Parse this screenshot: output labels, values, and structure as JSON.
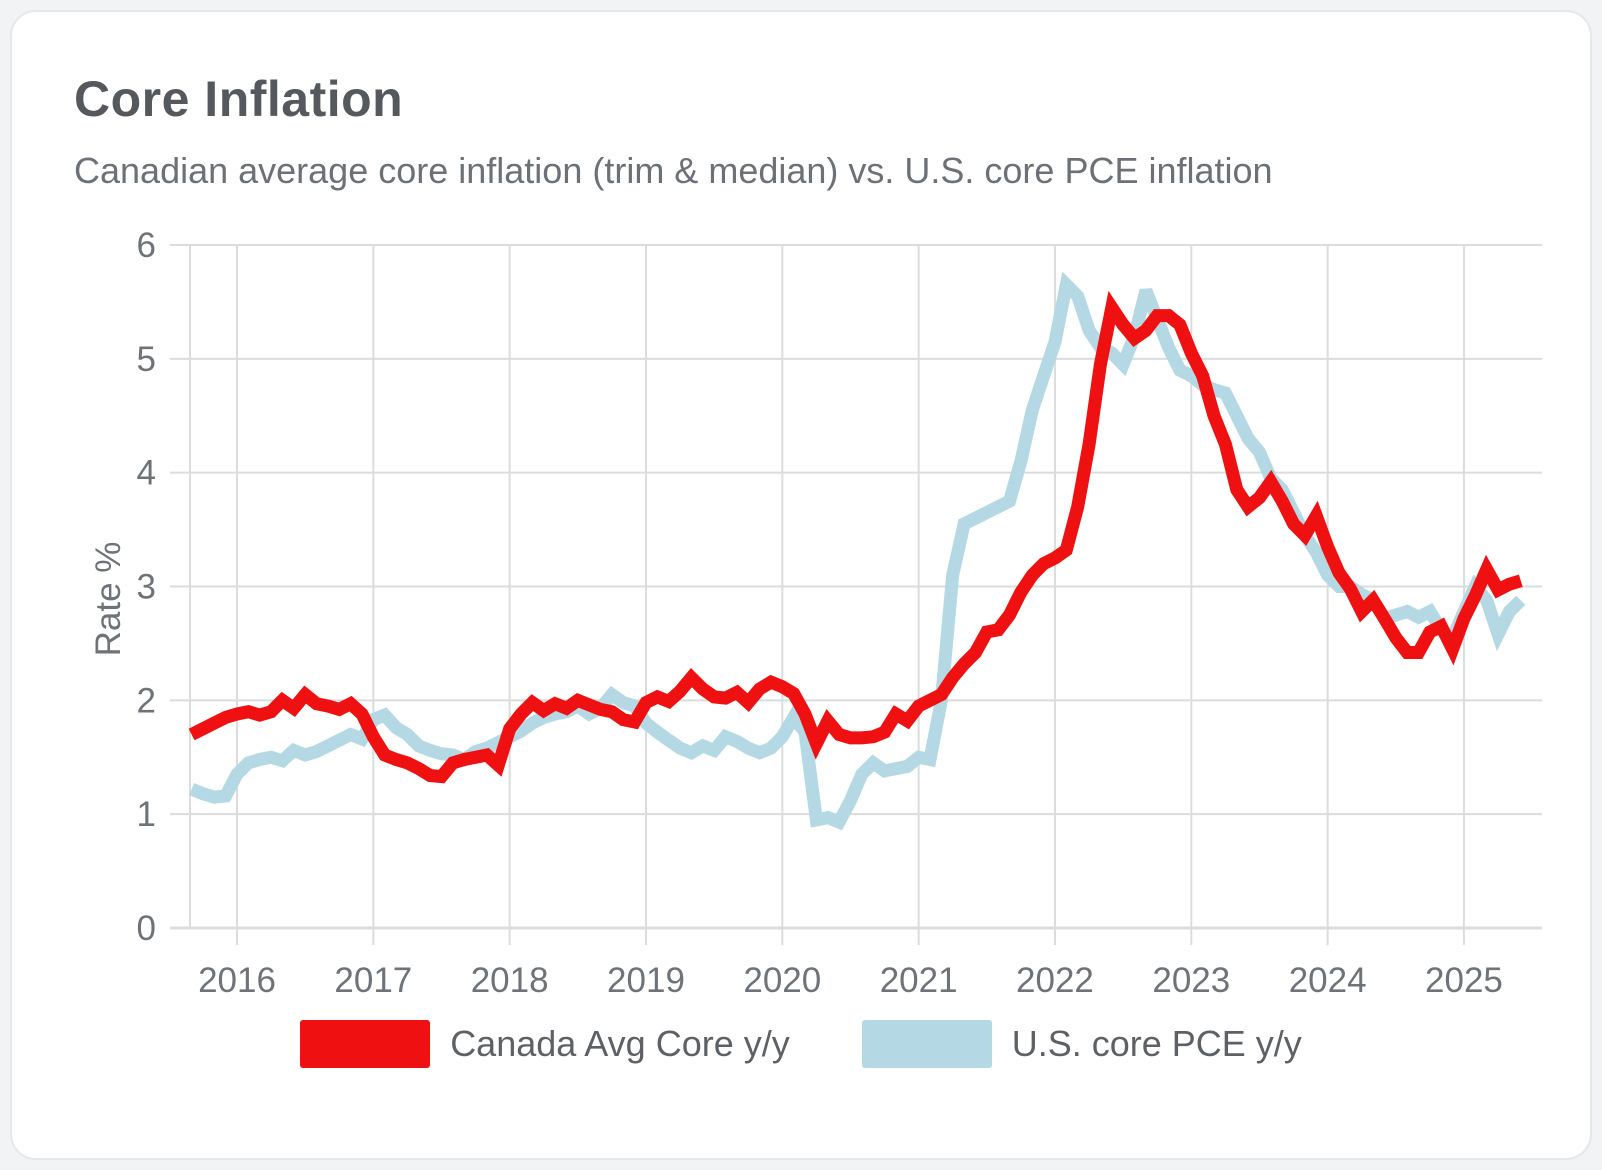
{
  "chart_data": {
    "type": "line",
    "title": "Core Inflation",
    "subtitle": "Canadian average core inflation (trim & median) vs. U.S. core PCE inflation",
    "ylabel": "Rate %",
    "frequency": "monthly",
    "x_start": "2015-09",
    "x_end": "2025-06",
    "ylim": [
      0,
      6
    ],
    "y_ticks": [
      0,
      1,
      2,
      3,
      4,
      5,
      6
    ],
    "x_ticks": [
      2016,
      2017,
      2018,
      2019,
      2020,
      2021,
      2022,
      2023,
      2024,
      2025
    ],
    "grid": true,
    "legend_position": "bottom",
    "grid_color": "#dadcde",
    "axis_text_color": "#6e7379",
    "series": [
      {
        "name": "U.S. core PCE y/y",
        "color": "#b4d9e5",
        "values": [
          1.22,
          1.18,
          1.15,
          1.16,
          1.35,
          1.45,
          1.48,
          1.5,
          1.47,
          1.56,
          1.52,
          1.55,
          1.6,
          1.65,
          1.7,
          1.66,
          1.83,
          1.87,
          1.76,
          1.7,
          1.6,
          1.56,
          1.53,
          1.52,
          1.48,
          1.55,
          1.58,
          1.63,
          1.68,
          1.73,
          1.8,
          1.85,
          1.88,
          1.9,
          1.95,
          1.88,
          1.93,
          2.05,
          1.98,
          1.95,
          1.8,
          1.72,
          1.65,
          1.58,
          1.54,
          1.6,
          1.56,
          1.68,
          1.64,
          1.58,
          1.54,
          1.58,
          1.68,
          1.85,
          1.72,
          0.95,
          0.97,
          0.93,
          1.12,
          1.35,
          1.45,
          1.38,
          1.4,
          1.42,
          1.5,
          1.48,
          2.0,
          3.1,
          3.55,
          3.6,
          3.65,
          3.7,
          3.75,
          4.1,
          4.55,
          4.85,
          5.15,
          5.65,
          5.55,
          5.25,
          5.1,
          5.05,
          4.95,
          5.2,
          5.6,
          5.35,
          5.1,
          4.9,
          4.85,
          4.77,
          4.73,
          4.7,
          4.5,
          4.3,
          4.18,
          3.95,
          3.85,
          3.65,
          3.45,
          3.3,
          3.1,
          3.0,
          3.0,
          2.93,
          2.88,
          2.72,
          2.75,
          2.78,
          2.73,
          2.78,
          2.62,
          2.55,
          2.78,
          3.0,
          2.88,
          2.58,
          2.78,
          2.88
        ]
      },
      {
        "name": "Canada Avg Core y/y",
        "color": "#ef1111",
        "values": [
          1.7,
          1.75,
          1.8,
          1.85,
          1.88,
          1.9,
          1.87,
          1.9,
          2.0,
          1.93,
          2.05,
          1.97,
          1.95,
          1.92,
          1.97,
          1.88,
          1.68,
          1.52,
          1.48,
          1.45,
          1.4,
          1.34,
          1.33,
          1.45,
          1.48,
          1.5,
          1.52,
          1.43,
          1.75,
          1.88,
          1.98,
          1.91,
          1.97,
          1.93,
          2.0,
          1.96,
          1.92,
          1.9,
          1.83,
          1.81,
          1.98,
          2.03,
          1.99,
          2.08,
          2.2,
          2.1,
          2.03,
          2.02,
          2.07,
          1.98,
          2.1,
          2.16,
          2.12,
          2.06,
          1.88,
          1.62,
          1.82,
          1.7,
          1.67,
          1.67,
          1.68,
          1.72,
          1.88,
          1.82,
          1.95,
          2.0,
          2.05,
          2.2,
          2.32,
          2.42,
          2.6,
          2.62,
          2.75,
          2.95,
          3.1,
          3.2,
          3.25,
          3.32,
          3.7,
          4.25,
          4.95,
          5.45,
          5.3,
          5.18,
          5.25,
          5.38,
          5.38,
          5.3,
          5.05,
          4.85,
          4.5,
          4.25,
          3.85,
          3.7,
          3.78,
          3.92,
          3.75,
          3.55,
          3.45,
          3.62,
          3.35,
          3.12,
          2.98,
          2.78,
          2.88,
          2.72,
          2.55,
          2.42,
          2.42,
          2.6,
          2.65,
          2.45,
          2.72,
          2.92,
          3.15,
          2.97,
          3.02,
          3.05
        ]
      }
    ],
    "legend": [
      "Canada Avg Core y/y",
      "U.S. core PCE y/y"
    ]
  },
  "legend_ui": {
    "canada_label": "Canada Avg Core y/y",
    "us_label": "U.S. core PCE y/y"
  }
}
